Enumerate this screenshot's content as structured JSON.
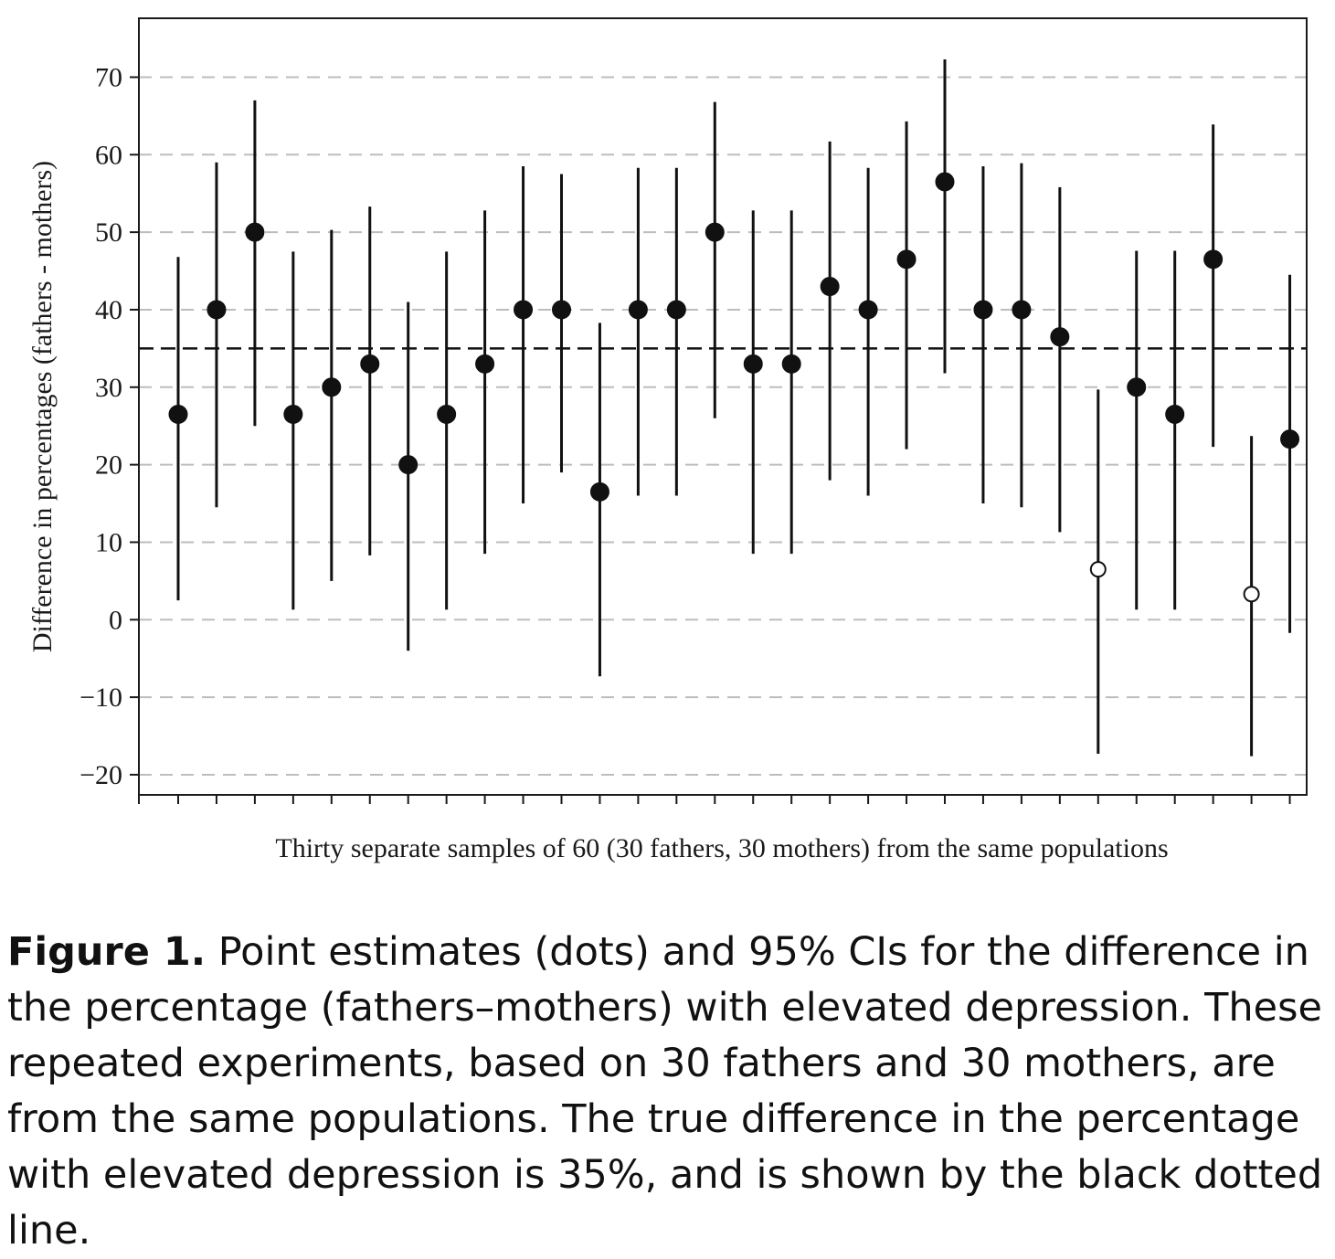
{
  "chart_data": {
    "type": "scatter",
    "xlabel": "Thirty separate samples of 60 (30 fathers, 30 mothers) from the same populations",
    "ylabel": "Difference in percentages (fathers - mothers)",
    "ylim": [
      -22.6,
      77.6
    ],
    "yticks": [
      -20,
      -10,
      0,
      10,
      20,
      30,
      40,
      50,
      60,
      70
    ],
    "ytick_labels": [
      "−20",
      "−10",
      "0",
      "10",
      "20",
      "30",
      "40",
      "50",
      "60",
      "70"
    ],
    "grid": "horizontal dashed",
    "reference_line": {
      "y": 35,
      "style": "dashed black"
    },
    "series": [
      {
        "x": [
          1,
          2,
          3,
          4,
          5,
          6,
          7,
          8,
          9,
          10,
          11,
          12,
          13,
          14,
          15,
          16,
          17,
          18,
          19,
          20,
          21,
          22,
          23,
          24,
          25,
          26,
          27,
          28,
          29,
          30
        ],
        "estimate": [
          26.5,
          40,
          50,
          26.5,
          30,
          33,
          20,
          26.5,
          33,
          40,
          40,
          16.5,
          40,
          40,
          50,
          33,
          33,
          43,
          40,
          46.5,
          56.5,
          40,
          40,
          36.5,
          6.5,
          30,
          26.5,
          46.5,
          3.3,
          23.3
        ],
        "ci_low": [
          2.5,
          14.5,
          25,
          1.3,
          5,
          8.3,
          -4,
          1.3,
          8.5,
          15,
          19,
          -7.3,
          16,
          16,
          26,
          8.5,
          8.5,
          18,
          16,
          22,
          31.8,
          15,
          14.5,
          11.3,
          -17.3,
          1.3,
          1.3,
          22.3,
          -17.6,
          -1.7
        ],
        "ci_high": [
          46.8,
          59,
          67,
          47.5,
          50.3,
          53.3,
          41,
          47.5,
          52.8,
          58.5,
          57.5,
          38.3,
          58.3,
          58.3,
          66.8,
          52.8,
          52.8,
          61.7,
          58.3,
          64.3,
          72.3,
          58.5,
          58.9,
          55.8,
          29.7,
          47.6,
          47.6,
          63.9,
          23.7,
          44.5
        ],
        "marker": [
          "filled",
          "filled",
          "filled",
          "filled",
          "filled",
          "filled",
          "filled",
          "filled",
          "filled",
          "filled",
          "filled",
          "filled",
          "filled",
          "filled",
          "filled",
          "filled",
          "filled",
          "filled",
          "filled",
          "filled",
          "filled",
          "filled",
          "filled",
          "filled",
          "open",
          "filled",
          "filled",
          "filled",
          "open",
          "filled"
        ]
      }
    ]
  },
  "caption": {
    "label": "Figure 1.",
    "text": "Point estimates (dots) and 95% CIs for the difference in the percentage (fathers–mothers) with elevated depression. These repeated experiments, based on 30 fathers and 30 mothers, are from the same populations. The true difference in the percentage with elevated depression is 35%, and is shown by the black dotted line."
  }
}
